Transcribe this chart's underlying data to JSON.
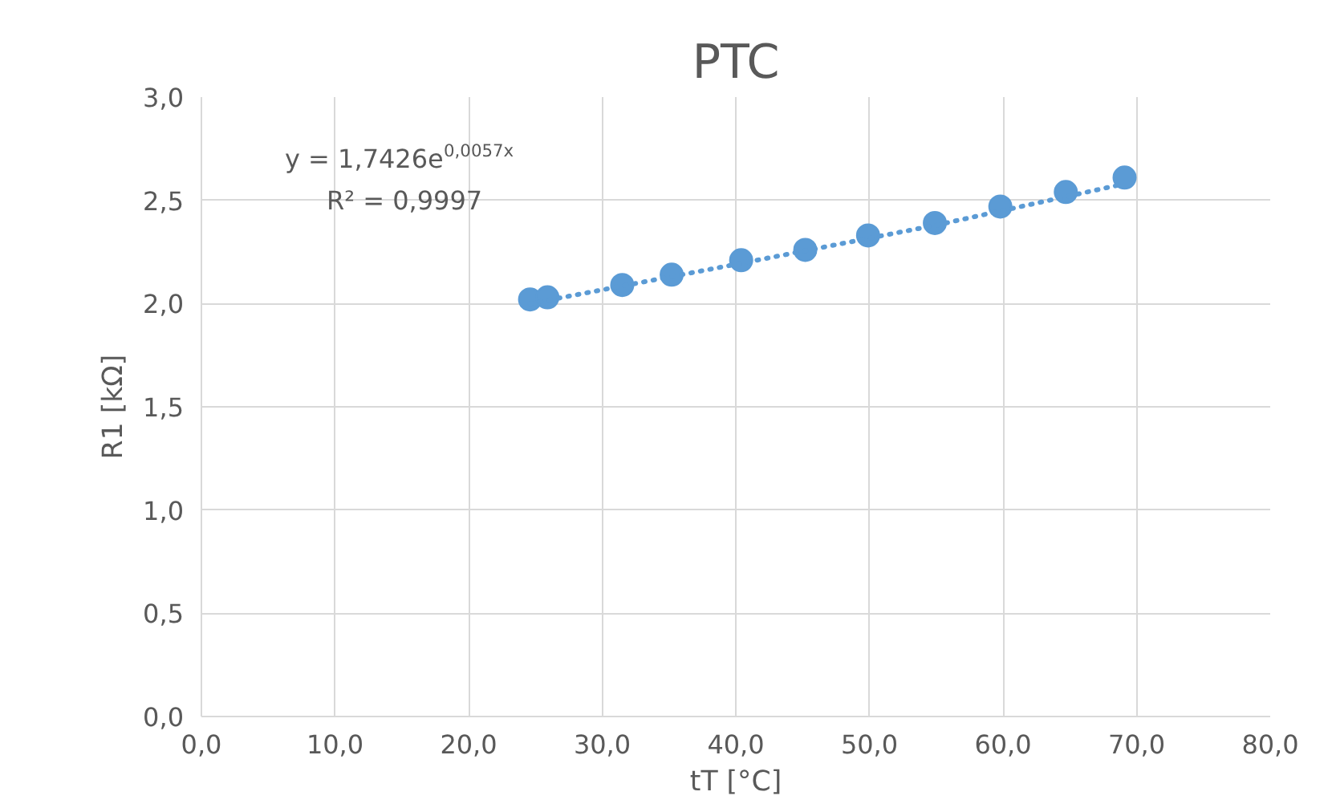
{
  "chart_data": {
    "type": "scatter",
    "title": "PTC",
    "xlabel": "tT [°C]",
    "ylabel": "R1 [kΩ]",
    "xlim": [
      0,
      80
    ],
    "ylim": [
      0,
      3
    ],
    "xticks": [
      {
        "value": 0,
        "label": "0,0"
      },
      {
        "value": 10,
        "label": "10,0"
      },
      {
        "value": 20,
        "label": "20,0"
      },
      {
        "value": 30,
        "label": "30,0"
      },
      {
        "value": 40,
        "label": "40,0"
      },
      {
        "value": 50,
        "label": "50,0"
      },
      {
        "value": 60,
        "label": "60,0"
      },
      {
        "value": 70,
        "label": "70,0"
      },
      {
        "value": 80,
        "label": "80,0"
      }
    ],
    "yticks": [
      {
        "value": 0,
        "label": "0,0"
      },
      {
        "value": 0.5,
        "label": "0,5"
      },
      {
        "value": 1,
        "label": "1,0"
      },
      {
        "value": 1.5,
        "label": "1,5"
      },
      {
        "value": 2,
        "label": "2,0"
      },
      {
        "value": 2.5,
        "label": "2,5"
      },
      {
        "value": 3,
        "label": "3,0"
      }
    ],
    "grid": true,
    "marker": "circle",
    "series": [
      {
        "color": "#5b9bd5",
        "x": [
          24.6,
          25.9,
          31.5,
          35.2,
          40.4,
          45.2,
          49.9,
          54.9,
          59.8,
          64.7,
          69.1
        ],
        "values": [
          2.02,
          2.03,
          2.09,
          2.14,
          2.21,
          2.26,
          2.33,
          2.39,
          2.47,
          2.54,
          2.61
        ]
      },
      {
        "type": "line",
        "color": "#5b9bd5",
        "line_style": "dotted",
        "marker": "none",
        "x": [
          24.6,
          40,
          55,
          69.1
        ],
        "values": [
          2.0,
          2.19,
          2.38,
          2.58
        ]
      }
    ],
    "annotations": [
      "y = 1,7426e$^{0,0057x}$",
      "R² = 0,9997"
    ]
  }
}
